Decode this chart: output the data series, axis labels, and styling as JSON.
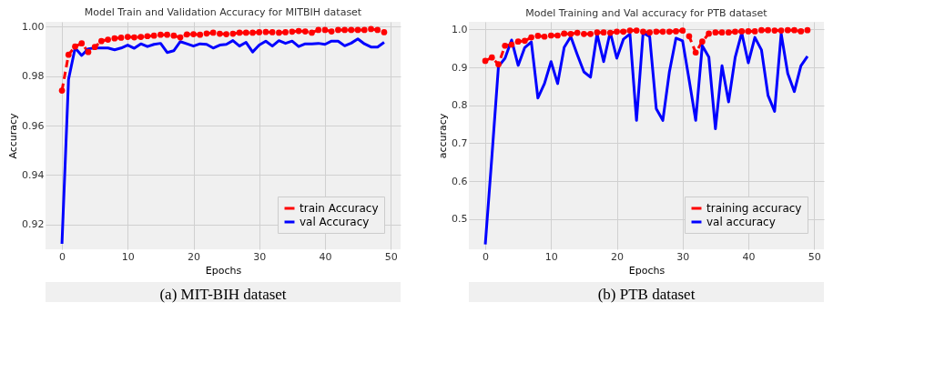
{
  "chart_data": [
    {
      "type": "line",
      "title": "Model Train and Validation Accuracy for MITBIH dataset",
      "xlabel": "Epochs",
      "ylabel": "Accuracy",
      "x": [
        0,
        1,
        2,
        3,
        4,
        5,
        6,
        7,
        8,
        9,
        10,
        11,
        12,
        13,
        14,
        15,
        16,
        17,
        18,
        19,
        20,
        21,
        22,
        23,
        24,
        25,
        26,
        27,
        28,
        29,
        30,
        31,
        32,
        33,
        34,
        35,
        36,
        37,
        38,
        39,
        40,
        41,
        42,
        43,
        44,
        45,
        46,
        47,
        48,
        49
      ],
      "series": [
        {
          "name": "train Accuracy",
          "color": "#ff0000",
          "marker": "circle",
          "line_style": "dashed",
          "values": [
            0.9742,
            0.9887,
            0.992,
            0.9933,
            0.9898,
            0.9918,
            0.9942,
            0.9948,
            0.9953,
            0.9956,
            0.9959,
            0.9957,
            0.9959,
            0.9962,
            0.9964,
            0.9968,
            0.9968,
            0.9964,
            0.9957,
            0.9969,
            0.997,
            0.9968,
            0.9973,
            0.9976,
            0.9972,
            0.997,
            0.9972,
            0.9976,
            0.9976,
            0.9976,
            0.9978,
            0.9979,
            0.9978,
            0.9976,
            0.9978,
            0.998,
            0.9983,
            0.9981,
            0.9976,
            0.9987,
            0.9987,
            0.9981,
            0.9987,
            0.9987,
            0.9987,
            0.9987,
            0.9987,
            0.9991,
            0.9987,
            0.9978
          ]
        },
        {
          "name": "val Accuracy",
          "color": "#0000ff",
          "marker": "none",
          "line_style": "solid",
          "values": [
            0.9122,
            0.9787,
            0.9914,
            0.9884,
            0.9911,
            0.9914,
            0.9914,
            0.9914,
            0.9907,
            0.9914,
            0.9926,
            0.9913,
            0.9931,
            0.992,
            0.9929,
            0.9933,
            0.9896,
            0.9903,
            0.994,
            0.9931,
            0.9922,
            0.9931,
            0.9929,
            0.9914,
            0.9926,
            0.9929,
            0.9944,
            0.9922,
            0.9937,
            0.9898,
            0.9926,
            0.9942,
            0.9922,
            0.9944,
            0.9933,
            0.9942,
            0.992,
            0.9931,
            0.9931,
            0.9933,
            0.9929,
            0.9942,
            0.9942,
            0.9923,
            0.9934,
            0.9951,
            0.9931,
            0.9918,
            0.9918,
            0.9937
          ]
        }
      ],
      "xlim": [
        -2.5,
        51.5
      ],
      "xticks": [
        0,
        10,
        20,
        30,
        40,
        50
      ],
      "ylim": [
        0.91,
        1.002
      ],
      "yticks": [
        {
          "value": 0.92,
          "label": "0.92"
        },
        {
          "value": 0.94,
          "label": "0.94"
        },
        {
          "value": 0.96,
          "label": "0.96"
        },
        {
          "value": 0.98,
          "label": "0.98"
        },
        {
          "value": 1.0,
          "label": "1.00"
        }
      ],
      "grid": true,
      "legend": "bottom right",
      "annotations": [
        "(a) MIT-BIH dataset"
      ]
    },
    {
      "type": "line",
      "title": "Model Training and Val accuracy for PTB dataset",
      "xlabel": "Epochs",
      "ylabel": "accuracy",
      "x": [
        0,
        1,
        2,
        3,
        4,
        5,
        6,
        7,
        8,
        9,
        10,
        11,
        12,
        13,
        14,
        15,
        16,
        17,
        18,
        19,
        20,
        21,
        22,
        23,
        24,
        25,
        26,
        27,
        28,
        29,
        30,
        31,
        32,
        33,
        34,
        35,
        36,
        37,
        38,
        39,
        40,
        41,
        42,
        43,
        44,
        45,
        46,
        47,
        48,
        49
      ],
      "series": [
        {
          "name": "training accuracy",
          "color": "#ff0000",
          "marker": "circle",
          "line_style": "dashed",
          "values": [
            0.917,
            0.926,
            0.908,
            0.957,
            0.96,
            0.968,
            0.97,
            0.979,
            0.983,
            0.981,
            0.984,
            0.984,
            0.989,
            0.988,
            0.991,
            0.988,
            0.988,
            0.992,
            0.992,
            0.991,
            0.994,
            0.994,
            0.997,
            0.997,
            0.994,
            0.992,
            0.994,
            0.994,
            0.994,
            0.995,
            0.997,
            0.982,
            0.939,
            0.968,
            0.989,
            0.992,
            0.992,
            0.992,
            0.994,
            0.995,
            0.995,
            0.995,
            0.998,
            0.998,
            0.997,
            0.997,
            0.998,
            0.998,
            0.995,
            0.998
          ]
        },
        {
          "name": "val accuracy",
          "color": "#0000ff",
          "marker": "none",
          "line_style": "solid",
          "values": [
            0.433,
            0.664,
            0.902,
            0.924,
            0.972,
            0.905,
            0.952,
            0.967,
            0.819,
            0.857,
            0.915,
            0.857,
            0.953,
            0.981,
            0.933,
            0.888,
            0.874,
            0.988,
            0.915,
            0.993,
            0.924,
            0.974,
            0.988,
            0.76,
            0.991,
            0.981,
            0.791,
            0.76,
            0.888,
            0.977,
            0.97,
            0.867,
            0.76,
            0.957,
            0.927,
            0.738,
            0.904,
            0.809,
            0.926,
            0.991,
            0.912,
            0.979,
            0.946,
            0.826,
            0.784,
            0.989,
            0.884,
            0.836,
            0.904,
            0.929
          ]
        }
      ],
      "xlim": [
        -2.5,
        51.5
      ],
      "xticks": [
        0,
        10,
        20,
        30,
        40,
        50
      ],
      "ylim": [
        0.42,
        1.02
      ],
      "yticks": [
        0.5,
        0.6,
        0.7,
        0.8,
        0.9,
        {
          "value": 1.0,
          "label": "1.0"
        }
      ],
      "grid": true,
      "legend": "bottom right",
      "annotations": [
        "(b) PTB dataset"
      ]
    }
  ]
}
